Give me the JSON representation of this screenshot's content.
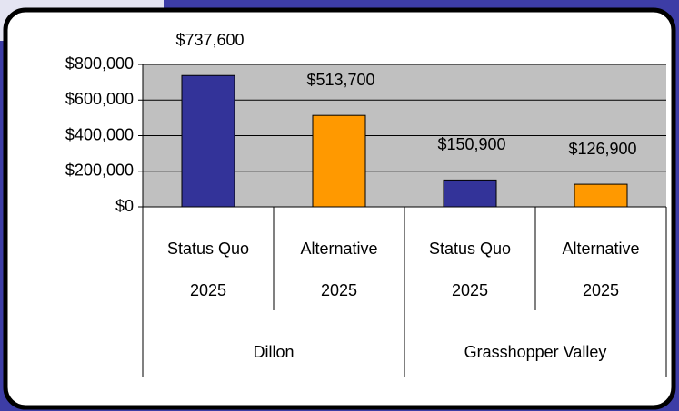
{
  "chart_data": {
    "type": "bar",
    "categories": [
      [
        "Status Quo",
        "2025"
      ],
      [
        "Alternative",
        "2025"
      ],
      [
        "Status Quo",
        "2025"
      ],
      [
        "Alternative",
        "2025"
      ]
    ],
    "groups": [
      "Dillon",
      "Grasshopper Valley"
    ],
    "values": [
      737600,
      513700,
      150900,
      126900
    ],
    "value_labels": [
      "$737,600",
      "$513,700",
      "$150,900",
      "$126,900"
    ],
    "colors": [
      "#333399",
      "#ff9900",
      "#333399",
      "#ff9900"
    ],
    "ylim": [
      0,
      800000
    ],
    "yticks": [
      {
        "value": 0,
        "label": "$0"
      },
      {
        "value": 200000,
        "label": "$200,000"
      },
      {
        "value": 400000,
        "label": "$400,000"
      },
      {
        "value": 600000,
        "label": "$600,000"
      },
      {
        "value": 800000,
        "label": "$800,000"
      }
    ],
    "grid": true
  }
}
